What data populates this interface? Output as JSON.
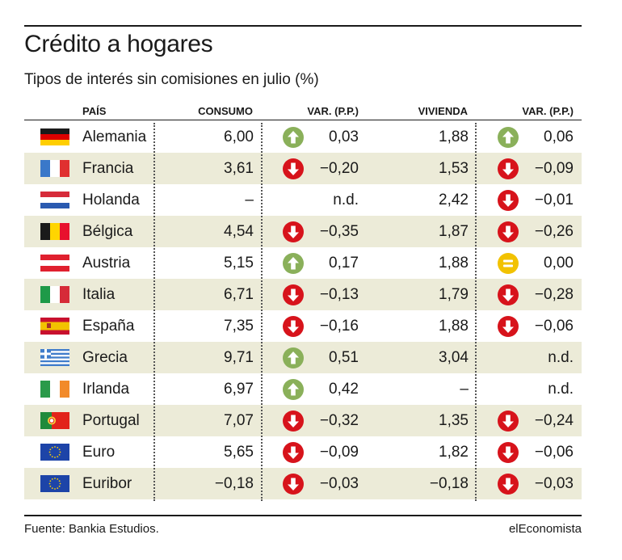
{
  "colors": {
    "up": "#8ab05a",
    "down": "#d7131b",
    "equal": "#f2c200",
    "shade": "#ecebd8"
  },
  "title": "Crédito a hogares",
  "subtitle": "Tipos de interés sin comisiones en julio (%)",
  "footer": {
    "source": "Fuente: Bankia Estudios.",
    "brand": "elEconomista"
  },
  "chart_data": {
    "type": "table",
    "title": "Crédito a hogares",
    "subtitle": "Tipos de interés sin comisiones en julio (%)",
    "columns": [
      "PAÍS",
      "CONSUMO",
      "VAR. (P.P.)",
      "VIVIENDA",
      "VAR. (P.P.)"
    ],
    "rows": [
      {
        "flag": "germany-flag-icon",
        "pais": "Alemania",
        "consumo": "6,00",
        "var_consumo": "0,03",
        "consumo_trend": "up",
        "vivienda": "1,88",
        "var_vivienda": "0,06",
        "vivienda_trend": "up"
      },
      {
        "flag": "france-flag-icon",
        "pais": "Francia",
        "consumo": "3,61",
        "var_consumo": "−0,20",
        "consumo_trend": "down",
        "vivienda": "1,53",
        "var_vivienda": "−0,09",
        "vivienda_trend": "down"
      },
      {
        "flag": "netherlands-flag-icon",
        "pais": "Holanda",
        "consumo": "–",
        "var_consumo": "n.d.",
        "consumo_trend": "none",
        "vivienda": "2,42",
        "var_vivienda": "−0,01",
        "vivienda_trend": "down"
      },
      {
        "flag": "belgium-flag-icon",
        "pais": "Bélgica",
        "consumo": "4,54",
        "var_consumo": "−0,35",
        "consumo_trend": "down",
        "vivienda": "1,87",
        "var_vivienda": "−0,26",
        "vivienda_trend": "down"
      },
      {
        "flag": "austria-flag-icon",
        "pais": "Austria",
        "consumo": "5,15",
        "var_consumo": "0,17",
        "consumo_trend": "up",
        "vivienda": "1,88",
        "var_vivienda": "0,00",
        "vivienda_trend": "equal"
      },
      {
        "flag": "italy-flag-icon",
        "pais": "Italia",
        "consumo": "6,71",
        "var_consumo": "−0,13",
        "consumo_trend": "down",
        "vivienda": "1,79",
        "var_vivienda": "−0,28",
        "vivienda_trend": "down"
      },
      {
        "flag": "spain-flag-icon",
        "pais": "España",
        "consumo": "7,35",
        "var_consumo": "−0,16",
        "consumo_trend": "down",
        "vivienda": "1,88",
        "var_vivienda": "−0,06",
        "vivienda_trend": "down"
      },
      {
        "flag": "greece-flag-icon",
        "pais": "Grecia",
        "consumo": "9,71",
        "var_consumo": "0,51",
        "consumo_trend": "up",
        "vivienda": "3,04",
        "var_vivienda": "n.d.",
        "vivienda_trend": "none"
      },
      {
        "flag": "ireland-flag-icon",
        "pais": "Irlanda",
        "consumo": "6,97",
        "var_consumo": "0,42",
        "consumo_trend": "up",
        "vivienda": "–",
        "var_vivienda": "n.d.",
        "vivienda_trend": "none"
      },
      {
        "flag": "portugal-flag-icon",
        "pais": "Portugal",
        "consumo": "7,07",
        "var_consumo": "−0,32",
        "consumo_trend": "down",
        "vivienda": "1,35",
        "var_vivienda": "−0,24",
        "vivienda_trend": "down"
      },
      {
        "flag": "eu-flag-icon",
        "pais": "Euro",
        "consumo": "5,65",
        "var_consumo": "−0,09",
        "consumo_trend": "down",
        "vivienda": "1,82",
        "var_vivienda": "−0,06",
        "vivienda_trend": "down"
      },
      {
        "flag": "eu-flag-icon",
        "pais": "Euribor",
        "consumo": "−0,18",
        "var_consumo": "−0,03",
        "consumo_trend": "down",
        "vivienda": "−0,18",
        "var_vivienda": "−0,03",
        "vivienda_trend": "down"
      }
    ]
  }
}
